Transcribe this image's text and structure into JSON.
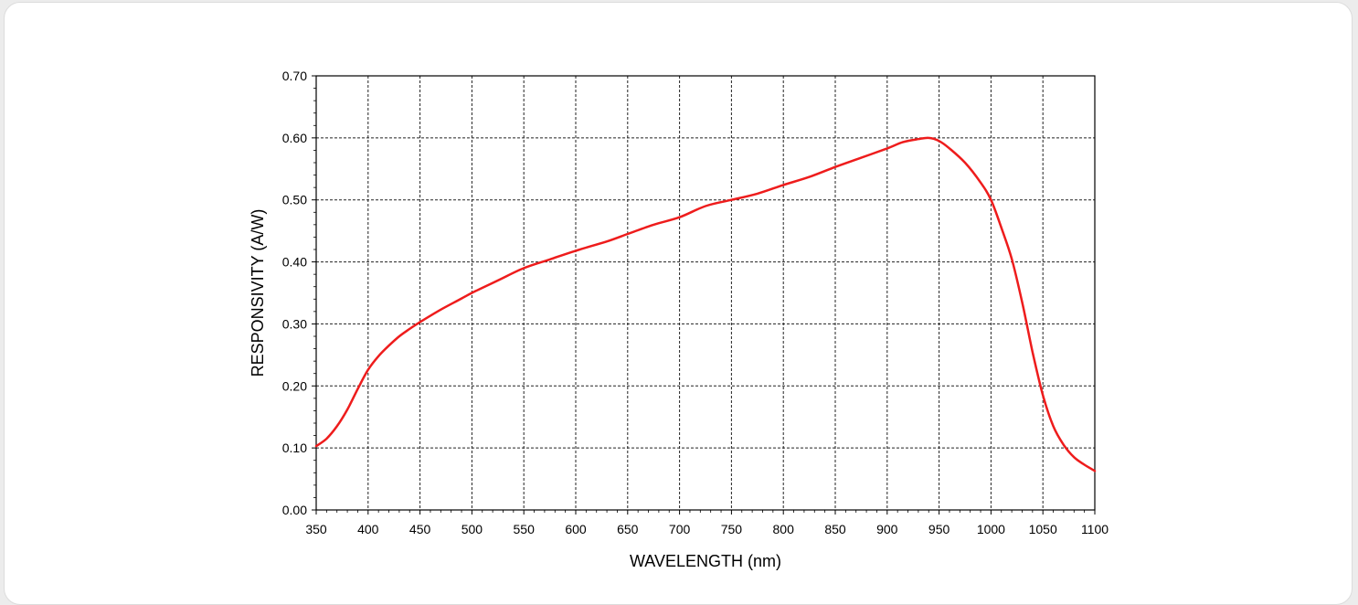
{
  "chart_data": {
    "type": "line",
    "title": "",
    "xlabel": "WAVELENGTH (nm)",
    "ylabel": "RESPONSIVITY (A/W)",
    "xlim": [
      350,
      1100
    ],
    "ylim": [
      0.0,
      0.7
    ],
    "x_ticks": [
      "350",
      "400",
      "450",
      "500",
      "550",
      "600",
      "650",
      "700",
      "750",
      "800",
      "850",
      "900",
      "950",
      "1000",
      "1050",
      "1100"
    ],
    "y_ticks": [
      "0.00",
      "0.10",
      "0.20",
      "0.30",
      "0.40",
      "0.50",
      "0.60",
      "0.70"
    ],
    "grid": true,
    "grid_style": "dashed",
    "legend": "none",
    "series": [
      {
        "color": "#ee1c1c",
        "x": [
          350,
          360,
          370,
          380,
          390,
          400,
          410,
          420,
          430,
          440,
          450,
          470,
          490,
          500,
          525,
          550,
          575,
          600,
          630,
          650,
          675,
          700,
          725,
          750,
          775,
          800,
          825,
          850,
          875,
          900,
          915,
          930,
          940,
          950,
          960,
          975,
          990,
          1000,
          1010,
          1020,
          1030,
          1040,
          1050,
          1060,
          1070,
          1080,
          1090,
          1100
        ],
        "y": [
          0.103,
          0.115,
          0.135,
          0.162,
          0.195,
          0.226,
          0.248,
          0.265,
          0.28,
          0.292,
          0.303,
          0.323,
          0.341,
          0.35,
          0.37,
          0.39,
          0.404,
          0.418,
          0.433,
          0.445,
          0.46,
          0.472,
          0.49,
          0.5,
          0.51,
          0.524,
          0.537,
          0.553,
          0.568,
          0.583,
          0.593,
          0.598,
          0.6,
          0.595,
          0.583,
          0.56,
          0.528,
          0.5,
          0.455,
          0.405,
          0.335,
          0.255,
          0.185,
          0.135,
          0.105,
          0.085,
          0.073,
          0.063
        ]
      }
    ]
  }
}
